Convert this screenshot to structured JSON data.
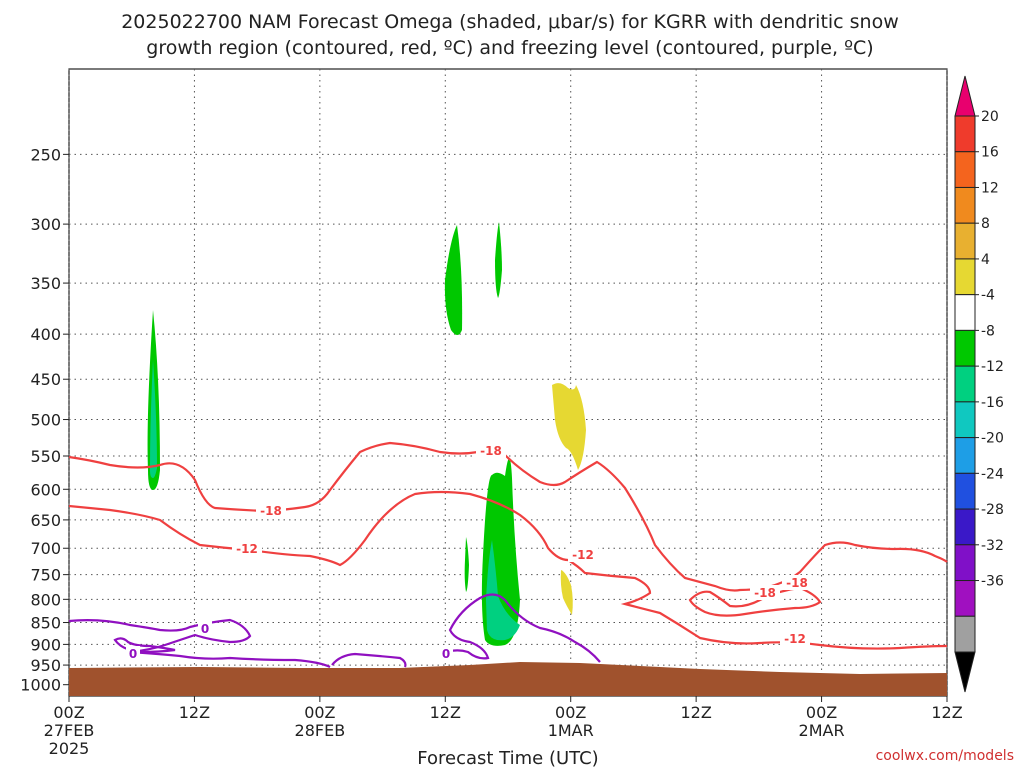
{
  "chart_data": {
    "type": "heatmap",
    "title_line1": "2025022700 NAM Forecast Omega (shaded, μbar/s) for KGRR with dendritic snow",
    "title_line2": "growth region (contoured, red, ºC) and freezing level (contoured, purple, ºC)",
    "xlabel": "Forecast Time (UTC)",
    "credit": "coolwx.com/models",
    "x_ticks": [
      {
        "hour": 0,
        "label": "00Z",
        "sub": "27FEB",
        "sub2": "2025"
      },
      {
        "hour": 12,
        "label": "12Z",
        "sub": "",
        "sub2": ""
      },
      {
        "hour": 24,
        "label": "00Z",
        "sub": "28FEB",
        "sub2": ""
      },
      {
        "hour": 36,
        "label": "12Z",
        "sub": "",
        "sub2": ""
      },
      {
        "hour": 48,
        "label": "00Z",
        "sub": "1MAR",
        "sub2": ""
      },
      {
        "hour": 60,
        "label": "12Z",
        "sub": "",
        "sub2": ""
      },
      {
        "hour": 72,
        "label": "00Z",
        "sub": "2MAR",
        "sub2": ""
      },
      {
        "hour": 84,
        "label": "12Z",
        "sub": "",
        "sub2": ""
      }
    ],
    "xlim": [
      0,
      84
    ],
    "y_ticks": [
      250,
      300,
      350,
      400,
      450,
      500,
      550,
      600,
      650,
      700,
      750,
      800,
      850,
      900,
      950,
      1000
    ],
    "ylim": [
      1030,
      200
    ],
    "y_scale": "log-pressure",
    "grid": true,
    "colorbar": {
      "labels": [
        "20",
        "16",
        "12",
        "8",
        "4",
        "-4",
        "-8",
        "-12",
        "-16",
        "-20",
        "-24",
        "-28",
        "-32",
        "-36"
      ],
      "colors": [
        "#e8006e",
        "#ef3b2c",
        "#f4641e",
        "#f08a1e",
        "#e8b030",
        "#e6d832",
        "#ffffff",
        "#00c800",
        "#00d080",
        "#10c8c0",
        "#1e9ee6",
        "#2050e0",
        "#3a18c8",
        "#8010c8",
        "#a010c0",
        "#a0a0a0",
        "#000000"
      ]
    },
    "contour_labels": {
      "dgz_cold": "-18",
      "dgz_warm": "-12",
      "freezing": "0"
    },
    "shaded_regions": [
      {
        "name": "omega-green-hour9",
        "value": "-4 to -8",
        "color": "#00c800"
      },
      {
        "name": "omega-teal-hour9",
        "value": "-8 to -12",
        "color": "#00d080"
      },
      {
        "name": "omega-green-hour36-upper",
        "value": "-4 to -8",
        "color": "#00c800"
      },
      {
        "name": "omega-green-hour41-upper",
        "value": "-4 to -8",
        "color": "#00c800"
      },
      {
        "name": "omega-green-hour40-low",
        "value": "-4 to -8",
        "color": "#00c800"
      },
      {
        "name": "omega-teal-hour40-low",
        "value": "-8 to -12",
        "color": "#00d080"
      },
      {
        "name": "omega-yellow-hour47",
        "value": "4 to 8",
        "color": "#e6d832"
      },
      {
        "name": "omega-yellow-hour47-low",
        "value": "4 to 8",
        "color": "#e6d832"
      }
    ],
    "terrain_color": "#a0522d",
    "dgz_color": "#ef4040",
    "freezing_color": "#9010c0"
  }
}
